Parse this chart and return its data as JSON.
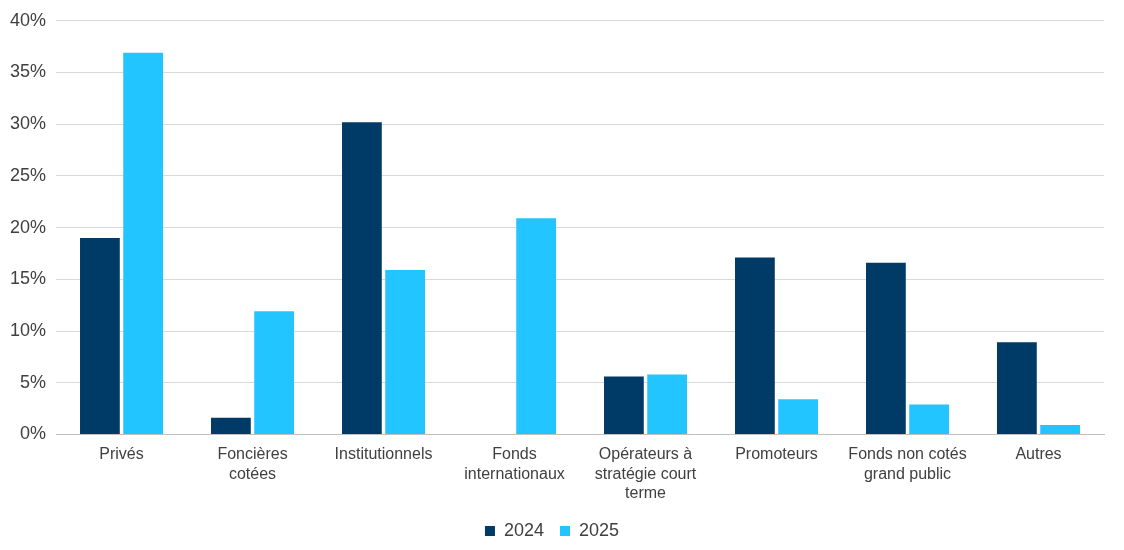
{
  "chart_data": {
    "type": "bar",
    "categories": [
      "Privés",
      "Foncières cotées",
      "Institutionnels",
      "Fonds internationaux",
      "Opérateurs à stratégie court terme",
      "Promoteurs",
      "Fonds non cotés grand public",
      "Autres"
    ],
    "series": [
      {
        "name": "2024",
        "color": "#003a66",
        "values": [
          19.0,
          1.6,
          30.2,
          null,
          5.6,
          17.1,
          16.6,
          8.9
        ]
      },
      {
        "name": "2025",
        "color": "#22c5ff",
        "values": [
          36.9,
          11.9,
          15.9,
          20.9,
          5.8,
          3.4,
          2.9,
          0.9
        ]
      }
    ],
    "ylim": [
      0,
      40
    ],
    "yticks": [
      {
        "value": 0,
        "label": "0%"
      },
      {
        "value": 5,
        "label": "5%"
      },
      {
        "value": 10,
        "label": "10%"
      },
      {
        "value": 15,
        "label": "15%"
      },
      {
        "value": 20,
        "label": "20%"
      },
      {
        "value": 25,
        "label": "25%"
      },
      {
        "value": 30,
        "label": "30%"
      },
      {
        "value": 35,
        "label": "35%"
      },
      {
        "value": 40,
        "label": "40%"
      }
    ],
    "grid": "y",
    "legend": "bottom"
  }
}
